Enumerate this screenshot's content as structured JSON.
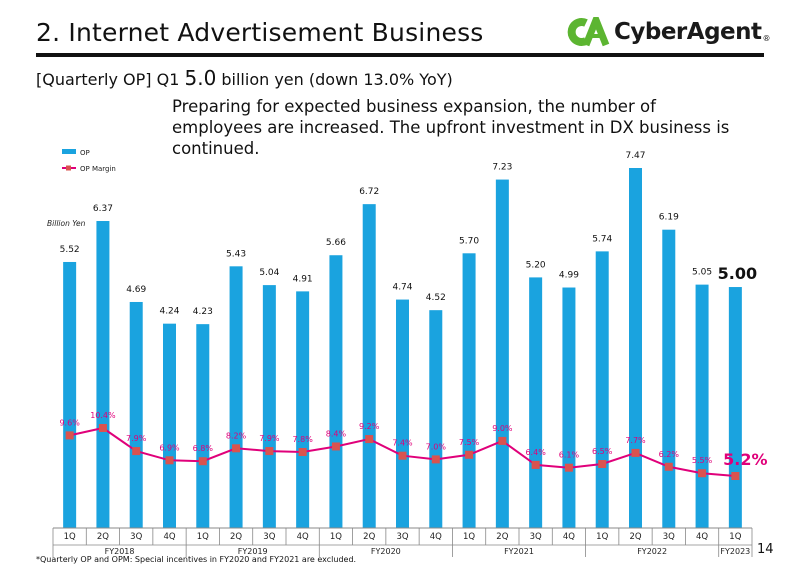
{
  "header": {
    "title": "2.  Internet Advertisement Business",
    "logo_text": "CyberAgent",
    "logo_dot": "®"
  },
  "summary": {
    "prefix": "[Quarterly OP]  Q1 ",
    "value": "5.0",
    "suffix": " billion yen (down 13.0% YoY)"
  },
  "note": "Preparing for expected business expansion, the number of employees are increased. The upfront investment in DX business is continued.",
  "footnote": "*Quarterly OP and OPM: Special incentives in FY2020 and FY2021 are excluded.",
  "page_number": "14",
  "colors": {
    "bar": "#1aa3df",
    "line": "#e0007a",
    "marker": "#d9534f",
    "axis": "#888888",
    "brand_green": "#5cb531"
  },
  "chart_data": {
    "type": "bar",
    "unit_label": "Billion Yen",
    "categories": [
      "1Q",
      "2Q",
      "3Q",
      "4Q",
      "1Q",
      "2Q",
      "3Q",
      "4Q",
      "1Q",
      "2Q",
      "3Q",
      "4Q",
      "1Q",
      "2Q",
      "3Q",
      "4Q",
      "1Q",
      "2Q",
      "3Q",
      "4Q",
      "1Q"
    ],
    "fiscal_years": [
      {
        "label": "FY2018",
        "count": 4
      },
      {
        "label": "FY2019",
        "count": 4
      },
      {
        "label": "FY2020",
        "count": 4
      },
      {
        "label": "FY2021",
        "count": 4
      },
      {
        "label": "FY2022",
        "count": 4
      },
      {
        "label": "FY2023",
        "count": 1
      }
    ],
    "series": [
      {
        "name": "OP",
        "type": "bar",
        "values": [
          5.52,
          6.37,
          4.69,
          4.24,
          4.23,
          5.43,
          5.04,
          4.91,
          5.66,
          6.72,
          4.74,
          4.52,
          5.7,
          7.23,
          5.2,
          4.99,
          5.74,
          7.47,
          6.19,
          5.05,
          5.0
        ],
        "labels": [
          "5.52",
          "6.37",
          "4.69",
          "4.24",
          "4.23",
          "5.43",
          "5.04",
          "4.91",
          "5.66",
          "6.72",
          "4.74",
          "4.52",
          "5.70",
          "7.23",
          "5.20",
          "4.99",
          "5.74",
          "7.47",
          "6.19",
          "5.05",
          "5.00"
        ]
      },
      {
        "name": "OP Margin",
        "type": "line",
        "values": [
          9.6,
          10.4,
          7.9,
          6.9,
          6.8,
          8.2,
          7.9,
          7.8,
          8.4,
          9.2,
          7.4,
          7.0,
          7.5,
          9.0,
          6.4,
          6.1,
          6.5,
          7.7,
          6.2,
          5.5,
          5.2
        ],
        "labels": [
          "9.6%",
          "10.4%",
          "7.9%",
          "6.9%",
          "6.8%",
          "8.2%",
          "7.9%",
          "7.8%",
          "8.4%",
          "9.2%",
          "7.4%",
          "7.0%",
          "7.5%",
          "9.0%",
          "6.4%",
          "6.1%",
          "6.5%",
          "7.7%",
          "6.2%",
          "5.5%",
          "5.2%"
        ]
      }
    ],
    "legend": [
      "OP",
      "OP Margin"
    ],
    "legend_position": "top-left",
    "ylim_op": [
      0,
      7.47
    ],
    "ylim_margin": [
      0,
      10.4
    ]
  }
}
